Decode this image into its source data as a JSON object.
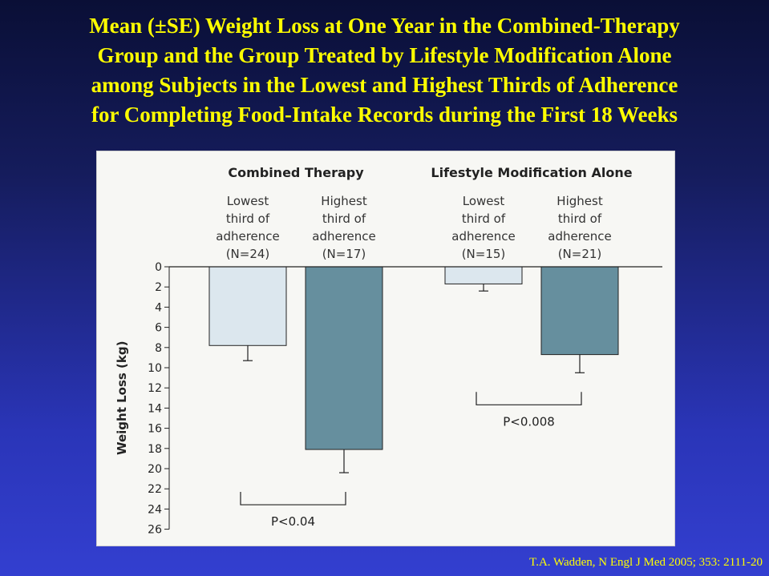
{
  "title": {
    "lines": [
      "Mean (±SE) Weight Loss at One Year in the Combined-Therapy",
      "Group and the Group Treated by Lifestyle Modification Alone",
      "among Subjects in the Lowest and Highest Thirds of Adherence",
      "for Completing Food-Intake Records during the First 18 Weeks"
    ]
  },
  "citation": "T.A. Wadden, N Engl J Med 2005; 353: 2111-20",
  "colors": {
    "title_text": "#ffff00",
    "lowest_bar": "#dce7ee",
    "highest_bar": "#668f9e"
  },
  "chart_data": {
    "type": "bar",
    "ylabel": "Weight Loss (kg)",
    "ylim": [
      0,
      26
    ],
    "y_axis_inverted": true,
    "yticks": [
      0,
      2,
      4,
      6,
      8,
      10,
      12,
      14,
      16,
      18,
      20,
      22,
      24,
      26
    ],
    "groups": [
      {
        "name": "Combined Therapy",
        "bars": [
          {
            "label_lines": [
              "Lowest",
              "third of",
              "adherence",
              "(N=24)"
            ],
            "value": 7.8,
            "se": 1.5,
            "color": "#dce7ee"
          },
          {
            "label_lines": [
              "Highest",
              "third of",
              "adherence",
              "(N=17)"
            ],
            "value": 18.1,
            "se": 2.3,
            "color": "#668f9e"
          }
        ],
        "pvalue": "P<0.04"
      },
      {
        "name": "Lifestyle Modification Alone",
        "bars": [
          {
            "label_lines": [
              "Lowest",
              "third of",
              "adherence",
              "(N=15)"
            ],
            "value": 1.7,
            "se": 0.7,
            "color": "#dce7ee"
          },
          {
            "label_lines": [
              "Highest",
              "third of",
              "adherence",
              "(N=21)"
            ],
            "value": 8.7,
            "se": 1.8,
            "color": "#668f9e"
          }
        ],
        "pvalue": "P<0.008"
      }
    ]
  }
}
